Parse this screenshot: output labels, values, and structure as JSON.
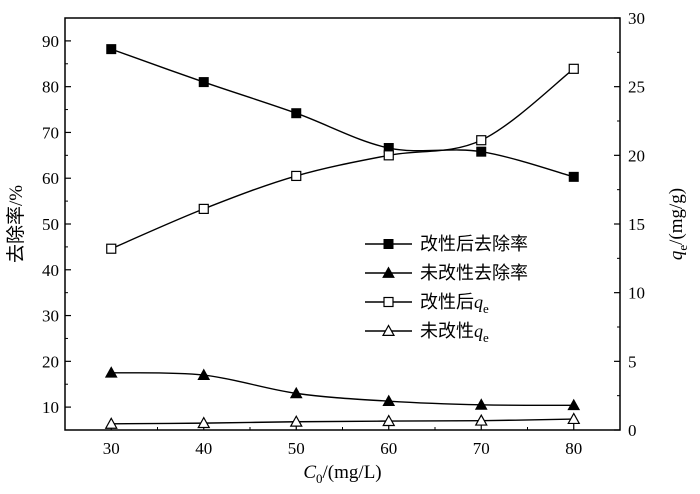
{
  "chart_data": {
    "type": "line",
    "x": [
      30,
      40,
      50,
      60,
      70,
      80
    ],
    "xlim": [
      25,
      85
    ],
    "xticks": [
      "30",
      "40",
      "50",
      "60",
      "70",
      "80"
    ],
    "xlabel": {
      "italic": "C",
      "sub": "0",
      "rest": "/(mg/L)"
    },
    "ylabel_left": "去除率/%",
    "ylim_left": [
      5,
      95
    ],
    "yticks_left": [
      "10",
      "20",
      "30",
      "40",
      "50",
      "60",
      "70",
      "80",
      "90"
    ],
    "ylabel_right": {
      "italic": "q",
      "sub": "e",
      "rest": "/(mg/g)"
    },
    "ylim_right": [
      0,
      30
    ],
    "yticks_right": [
      "0",
      "5",
      "10",
      "15",
      "20",
      "25",
      "30"
    ],
    "series": [
      {
        "name": "改性后去除率",
        "legend_text": "改性后去除率",
        "axis": "left",
        "marker": "filled-square",
        "values": [
          88.2,
          81.0,
          74.2,
          66.6,
          65.8,
          60.3
        ]
      },
      {
        "name": "未改性去除率",
        "legend_text": "未改性去除率",
        "axis": "left",
        "marker": "filled-triangle",
        "values": [
          17.5,
          17.0,
          13.0,
          11.3,
          10.5,
          10.4
        ]
      },
      {
        "name": "改性后qe",
        "legend_text": "改性后",
        "legend_italic": "q",
        "legend_sub": "e",
        "axis": "right",
        "marker": "open-square",
        "values": [
          13.2,
          16.1,
          18.5,
          20.0,
          21.1,
          26.3
        ]
      },
      {
        "name": "未改性qe",
        "legend_text": "未改性",
        "legend_italic": "q",
        "legend_sub": "e",
        "axis": "right",
        "marker": "open-triangle",
        "values": [
          0.45,
          0.5,
          0.6,
          0.65,
          0.68,
          0.8
        ]
      }
    ],
    "grid": false,
    "legend_position": "right-middle"
  }
}
